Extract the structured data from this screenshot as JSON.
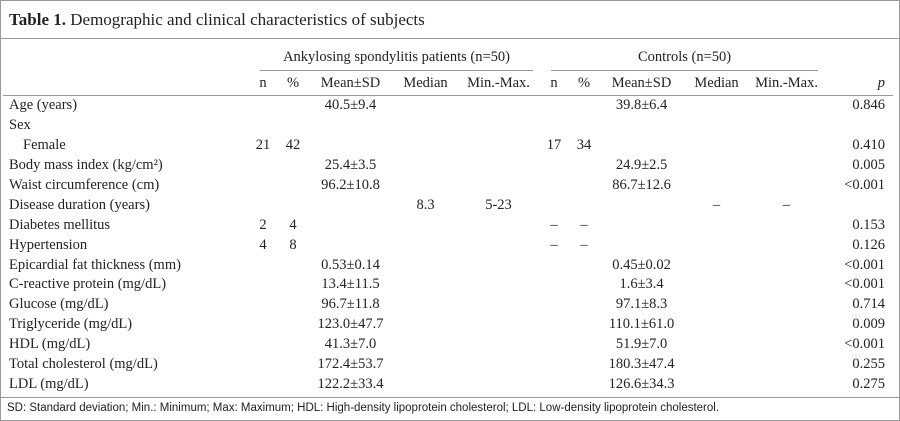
{
  "title": {
    "label": "Table 1.",
    "text": "Demographic and clinical characteristics of subjects"
  },
  "groups": [
    "Ankylosing spondylitis patients (n=50)",
    "Controls (n=50)"
  ],
  "columns": {
    "n": "n",
    "pct": "%",
    "mean": "Mean±SD",
    "median": "Median",
    "range": "Min.-Max.",
    "p": "p"
  },
  "rows": [
    {
      "label": "Age (years)",
      "as": {
        "mean": "40.5±9.4"
      },
      "ctrl": {
        "mean": "39.8±6.4"
      },
      "p": "0.846"
    },
    {
      "label": "Sex"
    },
    {
      "label": "Female",
      "indent": true,
      "as": {
        "n": "21",
        "pct": "42"
      },
      "ctrl": {
        "n": "17",
        "pct": "34"
      },
      "p": "0.410"
    },
    {
      "label": "Body mass index (kg/cm²)",
      "as": {
        "mean": "25.4±3.5"
      },
      "ctrl": {
        "mean": "24.9±2.5"
      },
      "p": "0.005"
    },
    {
      "label": "Waist circumference (cm)",
      "as": {
        "mean": "96.2±10.8"
      },
      "ctrl": {
        "mean": "86.7±12.6"
      },
      "p": "<0.001"
    },
    {
      "label": "Disease duration (years)",
      "as": {
        "median": "8.3",
        "range": "5-23"
      },
      "ctrl": {
        "median": "–",
        "range": "–"
      }
    },
    {
      "label": "Diabetes mellitus",
      "as": {
        "n": "2",
        "pct": "4"
      },
      "ctrl": {
        "n": "–",
        "pct": "–"
      },
      "p": "0.153"
    },
    {
      "label": "Hypertension",
      "as": {
        "n": "4",
        "pct": "8"
      },
      "ctrl": {
        "n": "–",
        "pct": "–"
      },
      "p": "0.126"
    },
    {
      "label": "Epicardial fat thickness (mm)",
      "as": {
        "mean": "0.53±0.14"
      },
      "ctrl": {
        "mean": "0.45±0.02"
      },
      "p": "<0.001"
    },
    {
      "label": "C-reactive protein (mg/dL)",
      "as": {
        "mean": "13.4±11.5"
      },
      "ctrl": {
        "mean": "1.6±3.4"
      },
      "p": "<0.001"
    },
    {
      "label": "Glucose (mg/dL)",
      "as": {
        "mean": "96.7±11.8"
      },
      "ctrl": {
        "mean": "97.1±8.3"
      },
      "p": "0.714"
    },
    {
      "label": "Triglyceride (mg/dL)",
      "as": {
        "mean": "123.0±47.7"
      },
      "ctrl": {
        "mean": "110.1±61.0"
      },
      "p": "0.009"
    },
    {
      "label": "HDL (mg/dL)",
      "as": {
        "mean": "41.3±7.0"
      },
      "ctrl": {
        "mean": "51.9±7.0"
      },
      "p": "<0.001"
    },
    {
      "label": "Total cholesterol (mg/dL)",
      "as": {
        "mean": "172.4±53.7"
      },
      "ctrl": {
        "mean": "180.3±47.4"
      },
      "p": "0.255"
    },
    {
      "label": "LDL (mg/dL)",
      "as": {
        "mean": "122.2±33.4"
      },
      "ctrl": {
        "mean": "126.6±34.3"
      },
      "p": "0.275"
    }
  ],
  "footnote": "SD: Standard deviation; Min.: Minimum; Max: Maximum; HDL: High-density lipoprotein cholesterol; LDL: Low-density lipoprotein cholesterol."
}
